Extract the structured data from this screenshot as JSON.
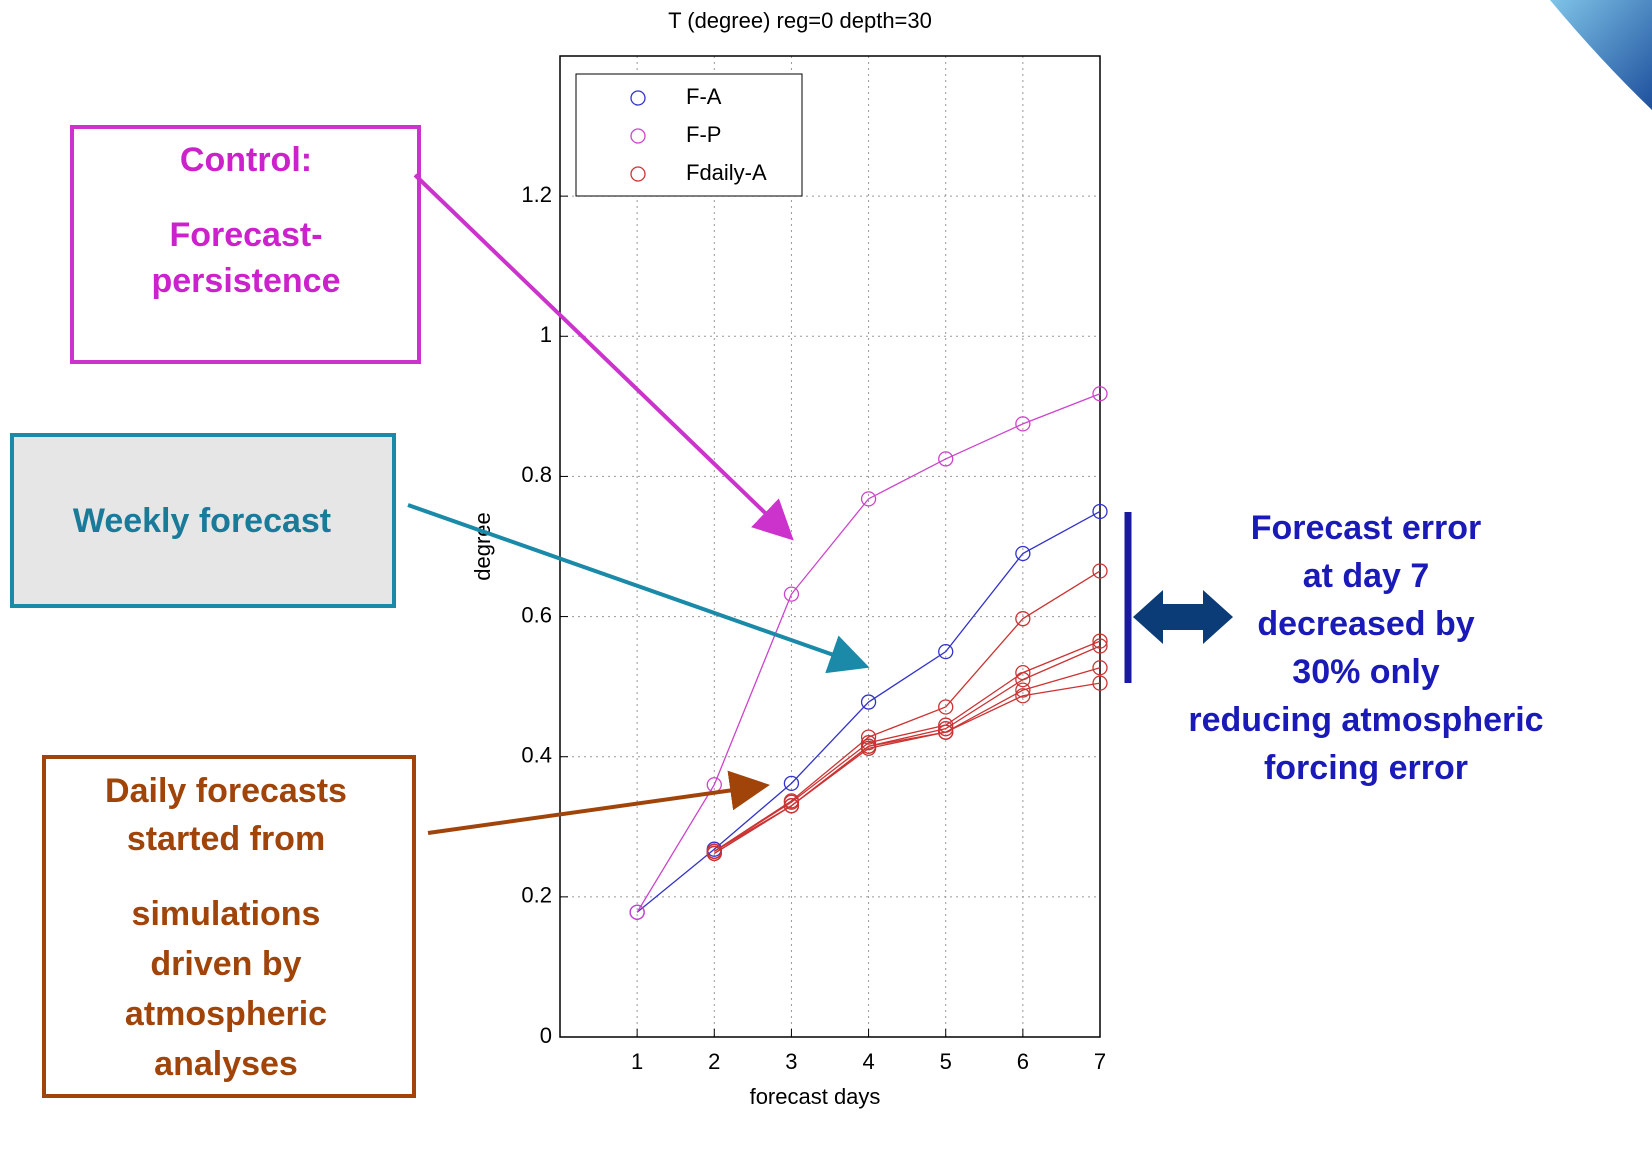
{
  "chart_data": {
    "type": "line",
    "title": "T (degree) reg=0 depth=30",
    "x_label": "forecast days",
    "y_label": "degree",
    "x": [
      1,
      2,
      3,
      4,
      5,
      6,
      7
    ],
    "series": [
      {
        "name": "F-A",
        "color": "#3333cc",
        "values": [
          0.178,
          0.268,
          0.362,
          0.478,
          0.55,
          0.69,
          0.75
        ]
      },
      {
        "name": "F-P",
        "color": "#cc44cc",
        "values": [
          0.178,
          0.36,
          0.632,
          0.768,
          0.825,
          0.875,
          0.918
        ]
      },
      {
        "name": "Fdaily-A",
        "color": "#cc3333",
        "values": [
          null,
          0.265,
          0.337,
          0.428,
          0.471,
          0.597,
          0.665
        ]
      },
      {
        "color": "#cc3333",
        "values": [
          null,
          0.265,
          0.335,
          0.42,
          0.445,
          0.52,
          0.565
        ]
      },
      {
        "color": "#cc3333",
        "values": [
          null,
          0.265,
          0.33,
          0.415,
          0.44,
          0.51,
          0.558
        ]
      },
      {
        "color": "#cc3333",
        "values": [
          null,
          0.262,
          0.33,
          0.415,
          0.435,
          0.495,
          0.527
        ]
      },
      {
        "color": "#cc3333",
        "values": [
          null,
          0.262,
          0.33,
          0.412,
          0.435,
          0.487,
          0.505
        ]
      }
    ],
    "xlim": [
      0,
      7
    ],
    "xticks": [
      1,
      2,
      3,
      4,
      5,
      6,
      7
    ],
    "ylim": [
      0,
      1.4
    ],
    "yticks": [
      0,
      0.2,
      0.4,
      0.6,
      0.8,
      1,
      1.2
    ],
    "grid": true,
    "legend": "top-left"
  },
  "annotations": {
    "control": [
      "Control:",
      "Forecast-",
      "persistence"
    ],
    "weekly": [
      "Weekly forecast"
    ],
    "daily": [
      "Daily forecasts",
      "started from",
      "simulations",
      "driven by",
      "atmospheric",
      "analyses"
    ],
    "result": [
      "Forecast error",
      "at day 7",
      "decreased by",
      "30% only",
      "reducing atmospheric",
      "forcing error"
    ]
  }
}
